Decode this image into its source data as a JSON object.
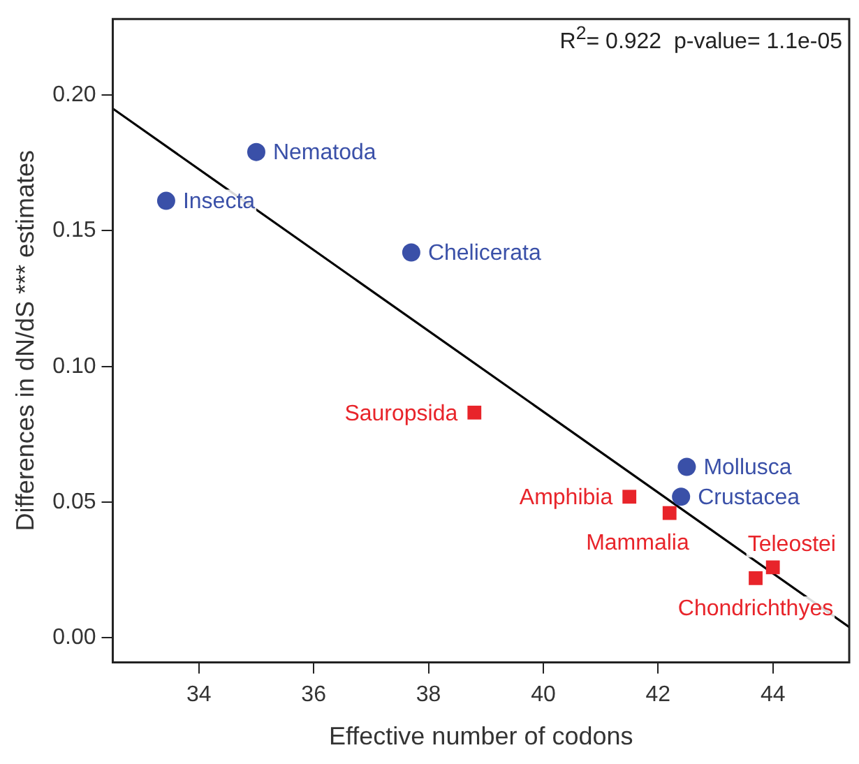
{
  "chart_data": {
    "type": "scatter",
    "xlabel": "Effective number of codons",
    "ylabel": "Differences in dN/dS *** estimates",
    "xlim": [
      32.5,
      45.33
    ],
    "ylim": [
      -0.009,
      0.228
    ],
    "xticks": [
      34,
      36,
      38,
      40,
      42,
      44
    ],
    "yticks": [
      {
        "value": 0,
        "label": "0.00"
      },
      {
        "value": 0.05,
        "label": "0.05"
      },
      {
        "value": 0.1,
        "label": "0.10"
      },
      {
        "value": 0.15,
        "label": "0.15"
      },
      {
        "value": 0.2,
        "label": "0.20"
      }
    ],
    "grid": false,
    "legend": false,
    "series": [
      {
        "marker": "circle",
        "color": "#3a50a8",
        "x": [
          33.43,
          35.0,
          37.7,
          42.5,
          42.4
        ],
        "values": [
          0.161,
          0.179,
          0.142,
          0.063,
          0.052
        ]
      },
      {
        "marker": "square",
        "color": "#e8242a",
        "x": [
          38.8,
          41.5,
          42.2,
          44.0,
          43.7
        ],
        "values": [
          0.083,
          0.052,
          0.046,
          0.026,
          0.022
        ]
      },
      {
        "type": "line",
        "marker": "none",
        "color": "#000000",
        "x": [
          32.5,
          45.33
        ],
        "values": [
          0.195,
          0.004
        ]
      }
    ],
    "annotations": [
      "R$^{2}$= 0.922  p-value= 1.1e-05",
      {
        "text": "Insecta",
        "x": 33.43,
        "y": 0.161
      },
      {
        "text": "Nematoda",
        "x": 35.0,
        "y": 0.179
      },
      {
        "text": "Chelicerata",
        "x": 37.7,
        "y": 0.142
      },
      {
        "text": "Mollusca",
        "x": 42.5,
        "y": 0.063
      },
      {
        "text": "Crustacea",
        "x": 42.4,
        "y": 0.052
      },
      {
        "text": "Sauropsida",
        "x": 38.8,
        "y": 0.083
      },
      {
        "text": "Amphibia",
        "x": 41.5,
        "y": 0.052
      },
      {
        "text": "Mammalia",
        "x": 42.2,
        "y": 0.046
      },
      {
        "text": "Teleostei",
        "x": 44.0,
        "y": 0.026
      },
      {
        "text": "Chondrichthyes",
        "x": 43.7,
        "y": 0.022
      }
    ]
  }
}
